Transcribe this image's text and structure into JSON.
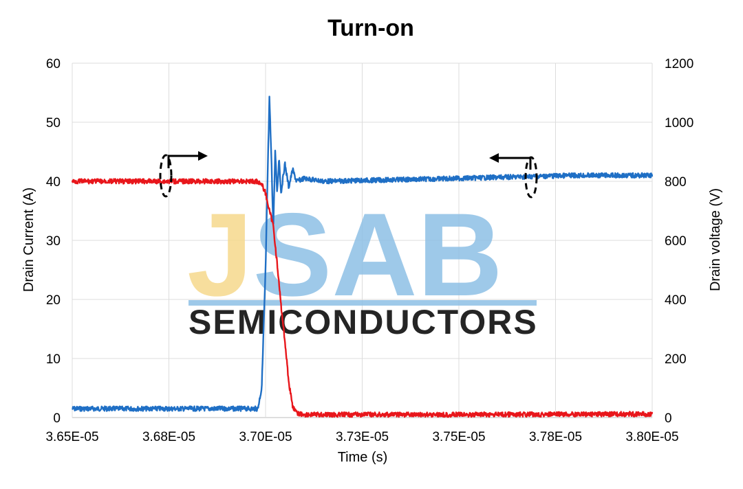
{
  "chart_data": {
    "type": "line",
    "title": "Turn-on",
    "xlabel": "Time (s)",
    "ylabel_left": "Drain Current (A)",
    "ylabel_right": "Drain voltage (V)",
    "xlim": [
      3.65e-05,
      3.8e-05
    ],
    "ylim_left": [
      0,
      60
    ],
    "ylim_right": [
      0,
      1200
    ],
    "x_tick_labels": [
      "3.65E-05",
      "3.68E-05",
      "3.70E-05",
      "3.73E-05",
      "3.75E-05",
      "3.78E-05",
      "3.80E-05"
    ],
    "y_left_ticks": [
      0,
      10,
      20,
      30,
      40,
      50,
      60
    ],
    "y_right_ticks": [
      0,
      200,
      400,
      600,
      800,
      1000,
      1200
    ],
    "grid": true,
    "series": [
      {
        "name": "Drain Current",
        "axis": "left",
        "color": "#1f6fc5",
        "x": [
          3.65e-05,
          3.675e-05,
          3.698e-05,
          3.699e-05,
          3.7e-05,
          3.7005e-05,
          3.701e-05,
          3.7015e-05,
          3.702e-05,
          3.7025e-05,
          3.703e-05,
          3.7035e-05,
          3.704e-05,
          3.705e-05,
          3.706e-05,
          3.707e-05,
          3.708e-05,
          3.71e-05,
          3.715e-05,
          3.75e-05,
          3.78e-05,
          3.8e-05
        ],
        "y": [
          1.5,
          1.5,
          1.5,
          5,
          25,
          40,
          54,
          44,
          32,
          45,
          38,
          44,
          38,
          43,
          39,
          42,
          40,
          40.5,
          40,
          40.5,
          41,
          41
        ]
      },
      {
        "name": "Drain voltage",
        "axis": "right",
        "color": "#e8161b",
        "x": [
          3.65e-05,
          3.68e-05,
          3.698e-05,
          3.699e-05,
          3.7e-05,
          3.701e-05,
          3.702e-05,
          3.703e-05,
          3.704e-05,
          3.705e-05,
          3.706e-05,
          3.707e-05,
          3.708e-05,
          3.71e-05,
          3.75e-05,
          3.8e-05
        ],
        "y": [
          800,
          800,
          800,
          790,
          760,
          700,
          650,
          520,
          380,
          260,
          120,
          40,
          15,
          10,
          10,
          12
        ]
      }
    ]
  },
  "watermark": {
    "logo_text": "JSAB",
    "tagline": "SEMICONDUCTORS",
    "color_gold": "#f6d98c",
    "color_blue": "#8ec0e6"
  }
}
